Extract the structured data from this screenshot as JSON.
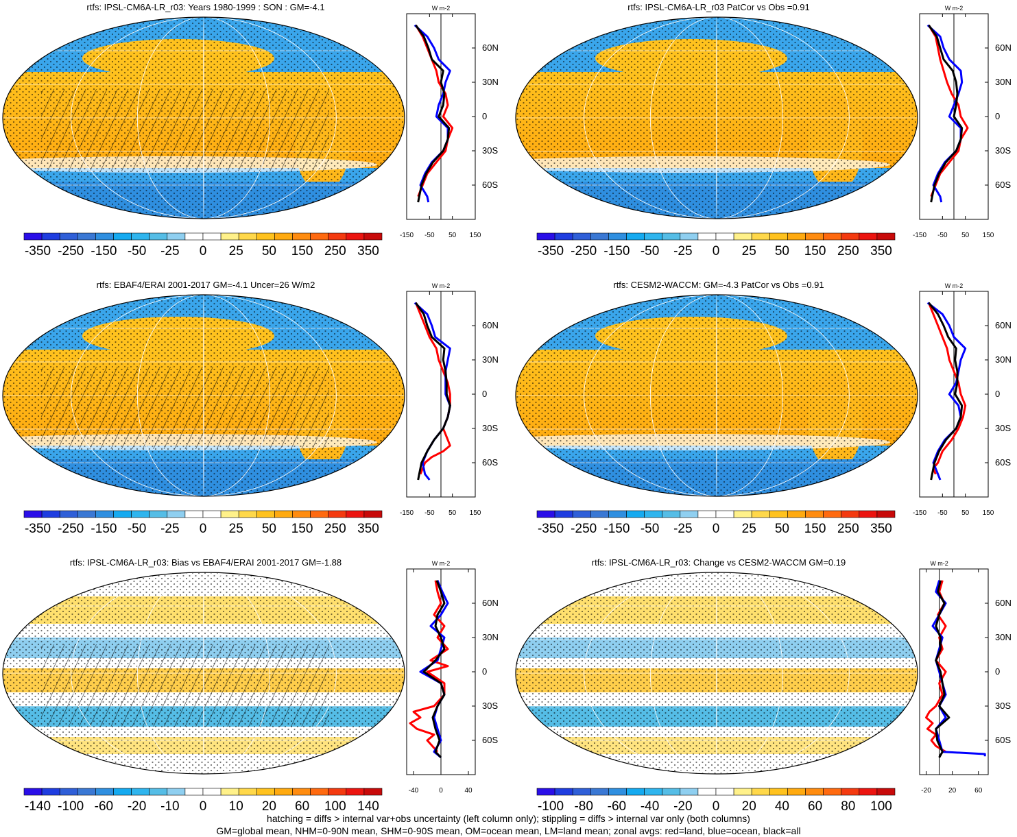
{
  "footer": {
    "line1": "hatching = diffs > internal var+obs uncertainty (left column only); stippling = diffs > internal var only (both columns)",
    "line2": "GM=global mean, NHM=0-90N mean, SHM=0-90S mean, OM=ocean mean, LM=land mean; zonal avgs: red=land, blue=ocean, black=all"
  },
  "colors": {
    "land": "#ff0000",
    "ocean": "#0000ff",
    "all": "#000000",
    "colorbar": [
      "#2a0ee8",
      "#1f3de0",
      "#2f5fd8",
      "#3a78d4",
      "#2f8fe0",
      "#15aaf0",
      "#2fb5ee",
      "#55bde6",
      "#8fcff0",
      "#ffffff",
      "#ffffff",
      "#fff18a",
      "#ffd84a",
      "#ffc21e",
      "#ffaa10",
      "#ff8c10",
      "#ff6a10",
      "#f43a10",
      "#ec1410",
      "#c80a0a"
    ]
  },
  "chart_data": [
    {
      "type": "heatmap",
      "title": "rtfs: IPSL-CM6A-LR_r03: Years 1980-1999 : SON : GM=-4.1",
      "colorbar_labels": [
        "-350",
        "-250",
        "-150",
        "-50",
        "-25",
        "0",
        "25",
        "50",
        "150",
        "250",
        "350"
      ],
      "hatching": true,
      "zonal": {
        "unit": "W m-2",
        "xticks": [
          "-150",
          "-50",
          "50",
          "150"
        ],
        "xlim": [
          -150,
          150
        ],
        "latitude_labels": [
          "60N",
          "30N",
          "0",
          "30S",
          "60S"
        ],
        "series": [
          {
            "name": "land",
            "lat": [
              80,
              70,
              60,
              50,
              40,
              30,
              20,
              10,
              0,
              -10,
              -20,
              -30,
              -40,
              -50,
              -60,
              -70
            ],
            "values": [
              -110,
              -80,
              -60,
              -40,
              -20,
              -10,
              20,
              30,
              10,
              50,
              30,
              20,
              -20,
              -60,
              -80,
              -100
            ]
          },
          {
            "name": "ocean",
            "lat": [
              80,
              70,
              60,
              50,
              40,
              30,
              20,
              10,
              0,
              -10,
              -20,
              -30,
              -40,
              -50,
              -60,
              -70,
              -75
            ],
            "values": [
              -115,
              -60,
              -30,
              -10,
              40,
              20,
              10,
              -10,
              -20,
              30,
              30,
              10,
              -40,
              -70,
              -90,
              -60,
              -55
            ]
          },
          {
            "name": "all",
            "lat": [
              80,
              70,
              60,
              50,
              40,
              30,
              20,
              10,
              0,
              -10,
              -20,
              -30,
              -40,
              -50,
              -60,
              -70,
              -75
            ],
            "values": [
              -110,
              -75,
              -55,
              -40,
              10,
              0,
              15,
              10,
              -10,
              35,
              30,
              10,
              -35,
              -65,
              -85,
              -95,
              -100
            ]
          }
        ]
      }
    },
    {
      "type": "heatmap",
      "title": "rtfs: IPSL-CM6A-LR_r03 PatCor vs Obs =0.91",
      "colorbar_labels": [
        "-350",
        "-250",
        "-150",
        "-50",
        "-25",
        "0",
        "25",
        "50",
        "150",
        "250",
        "350"
      ],
      "hatching": false,
      "zonal": {
        "unit": "W m-2",
        "xticks": [
          "-150",
          "-50",
          "50",
          "150"
        ],
        "xlim": [
          -150,
          150
        ],
        "latitude_labels": [
          "60N",
          "30N",
          "0",
          "30S",
          "60S"
        ],
        "series": [
          {
            "name": "land",
            "lat": [
              80,
              70,
              60,
              50,
              40,
              30,
              20,
              10,
              0,
              -10,
              -20,
              -30,
              -40,
              -50,
              -60,
              -70
            ],
            "values": [
              -110,
              -80,
              -70,
              -60,
              -45,
              -30,
              -10,
              20,
              30,
              60,
              30,
              20,
              -20,
              -60,
              -80,
              -100
            ]
          },
          {
            "name": "ocean",
            "lat": [
              80,
              70,
              60,
              50,
              40,
              30,
              20,
              10,
              0,
              -10,
              -20,
              -30,
              -40,
              -50,
              -60,
              -70,
              -75
            ],
            "values": [
              -115,
              -60,
              -45,
              -20,
              30,
              35,
              20,
              0,
              -20,
              30,
              30,
              10,
              -40,
              -70,
              -90,
              -60,
              -55
            ]
          },
          {
            "name": "all",
            "lat": [
              80,
              70,
              60,
              50,
              40,
              30,
              20,
              10,
              0,
              -10,
              -20,
              -30,
              -40,
              -50,
              -60,
              -70,
              -75
            ],
            "values": [
              -110,
              -75,
              -60,
              -45,
              -5,
              10,
              15,
              10,
              0,
              35,
              30,
              10,
              -35,
              -65,
              -85,
              -95,
              -100
            ]
          }
        ]
      }
    },
    {
      "type": "heatmap",
      "title": "rtfs: EBAF4/ERAI 2001-2017 GM=-4.1 Uncer=26 W/m2",
      "colorbar_labels": [
        "-350",
        "-250",
        "-150",
        "-50",
        "-25",
        "0",
        "25",
        "50",
        "150",
        "250",
        "350"
      ],
      "hatching": true,
      "zonal": {
        "unit": "W m-2",
        "xticks": [
          "-150",
          "-50",
          "50",
          "150"
        ],
        "xlim": [
          -150,
          150
        ],
        "latitude_labels": [
          "60N",
          "30N",
          "0",
          "30S",
          "60S"
        ],
        "series": [
          {
            "name": "land",
            "lat": [
              80,
              70,
              60,
              50,
              40,
              30,
              20,
              10,
              0,
              -10,
              -20,
              -30,
              -40,
              -45,
              -50,
              -55,
              -60,
              -70
            ],
            "values": [
              -110,
              -90,
              -70,
              -50,
              -20,
              -10,
              10,
              30,
              40,
              40,
              30,
              10,
              30,
              40,
              10,
              -40,
              -70,
              -90
            ]
          },
          {
            "name": "ocean",
            "lat": [
              80,
              70,
              60,
              50,
              40,
              30,
              20,
              10,
              0,
              -10,
              -20,
              -30,
              -40,
              -50,
              -60,
              -70,
              -75
            ],
            "values": [
              -115,
              -60,
              -40,
              -25,
              40,
              30,
              20,
              20,
              20,
              40,
              30,
              10,
              -30,
              -60,
              -80,
              -70,
              -50
            ]
          },
          {
            "name": "all",
            "lat": [
              80,
              70,
              60,
              50,
              40,
              30,
              20,
              10,
              0,
              -10,
              -20,
              -30,
              -40,
              -50,
              -60,
              -70,
              -75
            ],
            "values": [
              -110,
              -75,
              -60,
              -40,
              15,
              10,
              20,
              25,
              25,
              40,
              30,
              10,
              -30,
              -60,
              -85,
              -95,
              -100
            ]
          }
        ]
      }
    },
    {
      "type": "heatmap",
      "title": "rtfs: CESM2-WACCM: GM=-4.3 PatCor vs Obs =0.91",
      "colorbar_labels": [
        "-350",
        "-250",
        "-150",
        "-50",
        "-25",
        "0",
        "25",
        "50",
        "150",
        "250",
        "350"
      ],
      "hatching": false,
      "zonal": {
        "unit": "W m-2",
        "xticks": [
          "-150",
          "-50",
          "50",
          "150"
        ],
        "xlim": [
          -150,
          150
        ],
        "latitude_labels": [
          "60N",
          "30N",
          "0",
          "30S",
          "60S"
        ],
        "series": [
          {
            "name": "land",
            "lat": [
              80,
              70,
              60,
              50,
              40,
              30,
              20,
              10,
              0,
              -10,
              -20,
              -30,
              -40,
              -50,
              -60,
              -65,
              -70
            ],
            "values": [
              -110,
              -90,
              -70,
              -50,
              -30,
              -20,
              0,
              20,
              30,
              50,
              40,
              20,
              -10,
              -50,
              -70,
              -90,
              -80
            ]
          },
          {
            "name": "ocean",
            "lat": [
              80,
              70,
              60,
              50,
              40,
              30,
              20,
              10,
              0,
              -10,
              -20,
              -30,
              -40,
              -50,
              -60,
              -70,
              -75
            ],
            "values": [
              -115,
              -50,
              -20,
              0,
              50,
              30,
              20,
              10,
              -20,
              20,
              30,
              10,
              -40,
              -70,
              -90,
              -70,
              -60
            ]
          },
          {
            "name": "all",
            "lat": [
              80,
              70,
              60,
              50,
              40,
              30,
              20,
              10,
              0,
              -10,
              -20,
              -30,
              -40,
              -50,
              -60,
              -70,
              -75
            ],
            "values": [
              -110,
              -70,
              -45,
              -25,
              10,
              5,
              15,
              15,
              5,
              35,
              30,
              10,
              -35,
              -65,
              -85,
              -95,
              -100
            ]
          }
        ]
      }
    },
    {
      "type": "heatmap",
      "title": "rtfs: IPSL-CM6A-LR_r03: Bias vs EBAF4/ERAI 2001-2017  GM=-1.88",
      "colorbar_labels": [
        "-140",
        "-100",
        "-60",
        "-20",
        "-10",
        "0",
        "10",
        "20",
        "60",
        "100",
        "140"
      ],
      "hatching": true,
      "zonal": {
        "unit": "W m-2",
        "xticks": [
          "-40",
          "0",
          "40"
        ],
        "xlim": [
          -50,
          50
        ],
        "latitude_labels": [
          "60N",
          "30N",
          "0",
          "30S",
          "60S"
        ],
        "series": [
          {
            "name": "land",
            "lat": [
              80,
              70,
              60,
              50,
              40,
              30,
              20,
              10,
              5,
              0,
              -10,
              -20,
              -30,
              -35,
              -40,
              -45,
              -50,
              -55,
              -60,
              -70
            ],
            "values": [
              -8,
              -5,
              0,
              -10,
              5,
              -5,
              10,
              -15,
              10,
              -20,
              5,
              5,
              -10,
              -40,
              -30,
              -45,
              -35,
              -10,
              -20,
              -5
            ]
          },
          {
            "name": "ocean",
            "lat": [
              80,
              70,
              60,
              50,
              40,
              30,
              20,
              10,
              0,
              -10,
              -20,
              -30,
              -40,
              -50,
              -60,
              -70,
              -75
            ],
            "values": [
              -5,
              2,
              10,
              0,
              -15,
              5,
              0,
              -5,
              -30,
              0,
              5,
              -5,
              -10,
              -5,
              0,
              -10,
              0
            ]
          },
          {
            "name": "all",
            "lat": [
              80,
              70,
              60,
              50,
              40,
              30,
              20,
              10,
              0,
              -10,
              -20,
              -30,
              -40,
              -50,
              -60,
              -70,
              -75
            ],
            "values": [
              -6,
              0,
              5,
              -5,
              -8,
              0,
              5,
              -8,
              -25,
              0,
              5,
              -5,
              -12,
              -8,
              -2,
              -8,
              0
            ]
          }
        ]
      }
    },
    {
      "type": "heatmap",
      "title": "rtfs: IPSL-CM6A-LR_r03: Change vs CESM2-WACCM GM=0.19",
      "colorbar_labels": [
        "-100",
        "-80",
        "-60",
        "-40",
        "-20",
        "0",
        "20",
        "40",
        "60",
        "80",
        "100"
      ],
      "hatching": false,
      "zonal": {
        "unit": "W m-2",
        "xticks": [
          "-20",
          "20",
          "60"
        ],
        "xlim": [
          -30,
          75
        ],
        "latitude_labels": [
          "60N",
          "30N",
          "0",
          "30S",
          "60S"
        ],
        "series": [
          {
            "name": "land",
            "lat": [
              80,
              70,
              60,
              50,
              40,
              30,
              20,
              10,
              0,
              -10,
              -20,
              -30,
              -35,
              -40,
              -45,
              -50,
              -55,
              -60,
              -65,
              -70
            ],
            "values": [
              5,
              0,
              8,
              -2,
              10,
              0,
              5,
              -5,
              10,
              0,
              5,
              -5,
              -15,
              -20,
              -10,
              -18,
              -5,
              -12,
              -5,
              10
            ]
          },
          {
            "name": "ocean",
            "lat": [
              80,
              70,
              60,
              50,
              40,
              30,
              20,
              10,
              0,
              -10,
              -20,
              -30,
              -40,
              -50,
              -60,
              -70,
              -72,
              -74
            ],
            "values": [
              0,
              -5,
              10,
              0,
              -10,
              5,
              0,
              -5,
              0,
              5,
              10,
              0,
              10,
              -5,
              0,
              5,
              70,
              70
            ]
          },
          {
            "name": "all",
            "lat": [
              80,
              70,
              60,
              50,
              40,
              30,
              20,
              10,
              0,
              -10,
              -20,
              -30,
              -40,
              -50,
              -60,
              -70,
              -75
            ],
            "values": [
              2,
              -2,
              8,
              0,
              -5,
              2,
              2,
              -5,
              2,
              5,
              8,
              0,
              15,
              -5,
              -3,
              5,
              0
            ]
          }
        ]
      }
    }
  ]
}
